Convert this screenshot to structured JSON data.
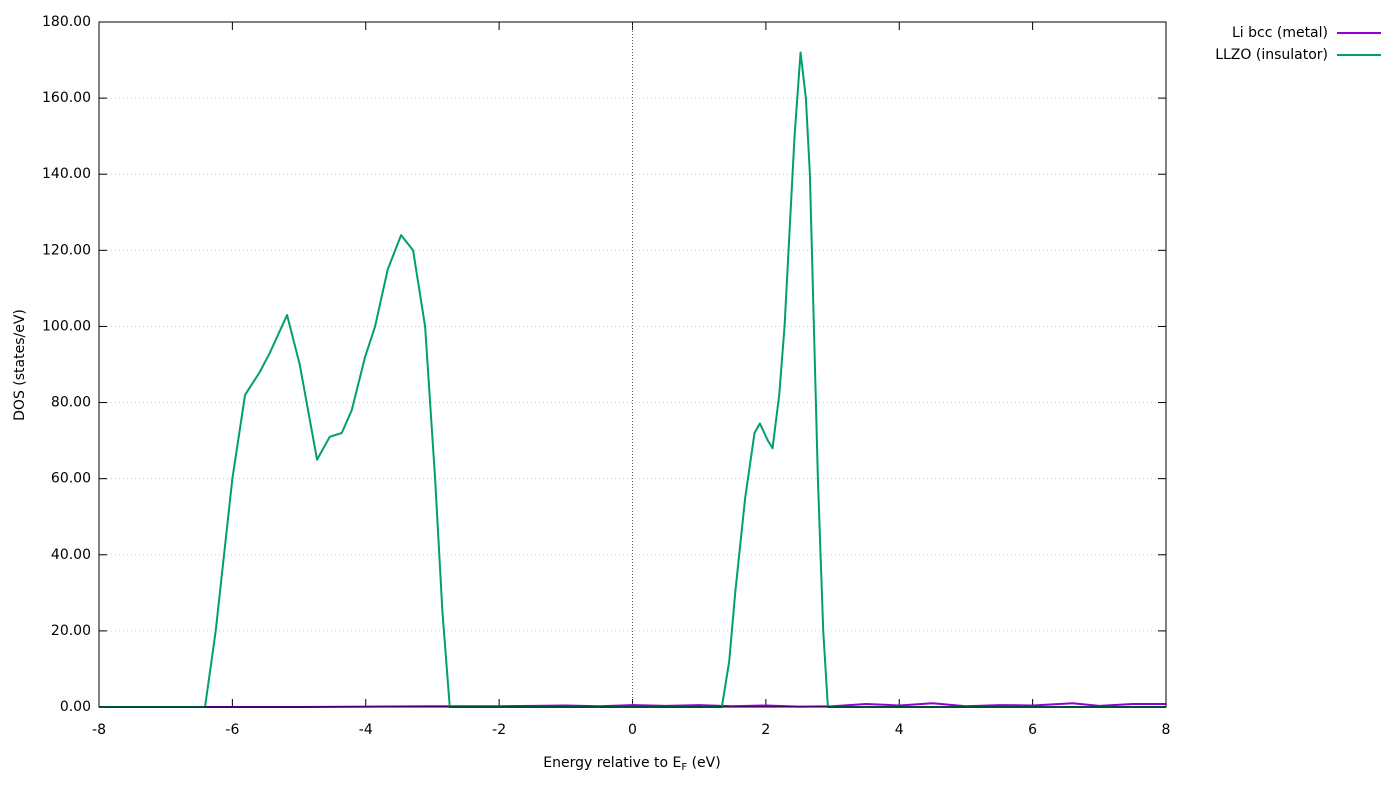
{
  "chart_data": {
    "type": "line",
    "xlabel": [
      "Energy relative to E",
      "F",
      " (eV)"
    ],
    "ylabel": "DOS (states/eV)",
    "xlim": [
      -8,
      8
    ],
    "ylim": [
      0,
      180
    ],
    "xticks": [
      -8,
      -6,
      -4,
      -2,
      0,
      2,
      4,
      6,
      8
    ],
    "yticks": [
      {
        "value": 0,
        "label": "0.00"
      },
      {
        "value": 20,
        "label": "20.00"
      },
      {
        "value": 40,
        "label": "40.00"
      },
      {
        "value": 60,
        "label": "60.00"
      },
      {
        "value": 80,
        "label": "80.00"
      },
      {
        "value": 100,
        "label": "100.00"
      },
      {
        "value": 120,
        "label": "120.00"
      },
      {
        "value": 140,
        "label": "140.00"
      },
      {
        "value": 160,
        "label": "160.00"
      },
      {
        "value": 180,
        "label": "180.00"
      }
    ],
    "grid": true,
    "vline": 0,
    "legend": "top-right-outside",
    "series": [
      {
        "name": "Li bcc (metal)",
        "color": "#9400d3",
        "x": [
          -8,
          -7,
          -6,
          -5,
          -4,
          -3,
          -2,
          -1.5,
          -1,
          -0.5,
          0,
          0.5,
          1,
          1.5,
          2,
          2.5,
          3,
          3.5,
          4,
          4.5,
          5,
          5.5,
          6,
          6.6,
          7,
          7.5,
          8
        ],
        "values": [
          0,
          0,
          0,
          0,
          0.1,
          0.2,
          0.2,
          0.3,
          0.4,
          0.2,
          0.5,
          0.3,
          0.5,
          0.2,
          0.4,
          0.1,
          0.2,
          0.8,
          0.4,
          1,
          0.2,
          0.5,
          0.4,
          1,
          0.3,
          0.8,
          0.8
        ]
      },
      {
        "name": "LLZO (insulator)",
        "color": "#009e73",
        "x": [
          -8,
          -6.41,
          -6.25,
          -6.0,
          -5.81,
          -5.59,
          -5.44,
          -5.18,
          -4.99,
          -4.73,
          -4.54,
          -4.36,
          -4.21,
          -4.01,
          -3.86,
          -3.67,
          -3.47,
          -3.29,
          -3.11,
          -2.96,
          -2.85,
          -2.74,
          1.34,
          1.45,
          1.54,
          1.69,
          1.83,
          1.91,
          2.03,
          2.1,
          2.2,
          2.28,
          2.43,
          2.52,
          2.6,
          2.66,
          2.78,
          2.86,
          2.93,
          8
        ],
        "values": [
          0,
          0,
          20,
          60,
          82,
          88,
          93,
          103,
          90,
          65,
          71,
          72,
          78,
          92,
          100,
          115,
          124,
          120,
          100,
          60,
          25,
          0,
          0,
          12,
          30,
          55,
          72,
          74.5,
          70,
          68,
          82,
          100,
          150,
          172,
          160,
          140,
          60,
          20,
          0,
          0
        ]
      }
    ]
  }
}
